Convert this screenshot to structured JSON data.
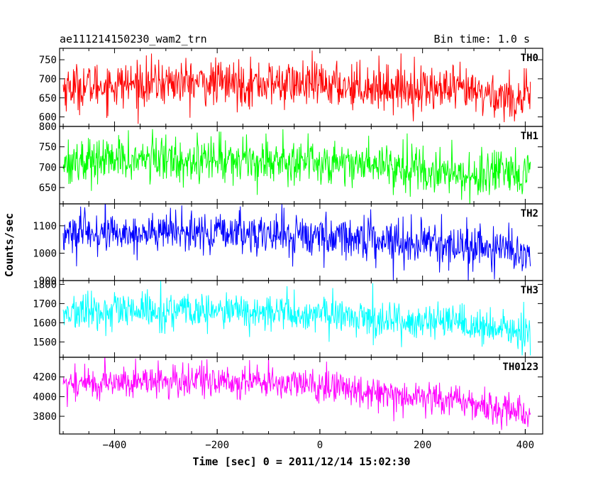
{
  "header": {
    "title": "ae111214150230_wam2_trn",
    "bin_time": "Bin time: 1.0 s"
  },
  "chart_data": {
    "type": "line",
    "title": "ae111214150230_wam2_trn",
    "xlabel": "Time [sec] 0 = 2011/12/14 15:02:30",
    "ylabel": "Counts/sec",
    "xlim": [
      -507,
      434
    ],
    "x_ticks": [
      -400,
      -200,
      0,
      200,
      400
    ],
    "x_range_data": [
      -500,
      410
    ],
    "grid": false,
    "panels": [
      {
        "name": "TH0",
        "color": "#ff0000",
        "ylim": [
          575,
          780
        ],
        "y_ticks": [
          600,
          650,
          700,
          750
        ],
        "trend": [
          [
            -500,
            678
          ],
          [
            -300,
            690
          ],
          [
            -100,
            688
          ],
          [
            100,
            680
          ],
          [
            260,
            670
          ],
          [
            410,
            645
          ]
        ],
        "noise_sd": 30
      },
      {
        "name": "TH1",
        "color": "#00ff00",
        "ylim": [
          610,
          800
        ],
        "y_ticks": [
          650,
          700,
          750,
          800
        ],
        "trend": [
          [
            -500,
            715
          ],
          [
            -300,
            720
          ],
          [
            -100,
            718
          ],
          [
            100,
            708
          ],
          [
            180,
            705
          ],
          [
            200,
            688
          ],
          [
            410,
            675
          ]
        ],
        "noise_sd": 28
      },
      {
        "name": "TH2",
        "color": "#0000ff",
        "ylim": [
          900,
          1180
        ],
        "y_ticks": [
          900,
          1000,
          1100
        ],
        "trend": [
          [
            -500,
            1070
          ],
          [
            -300,
            1075
          ],
          [
            -100,
            1070
          ],
          [
            100,
            1055
          ],
          [
            250,
            1030
          ],
          [
            410,
            1000
          ]
        ],
        "noise_sd": 38
      },
      {
        "name": "TH3",
        "color": "#00ffff",
        "ylim": [
          1420,
          1820
        ],
        "y_ticks": [
          1500,
          1600,
          1700,
          1800
        ],
        "trend": [
          [
            -500,
            1650
          ],
          [
            -300,
            1660
          ],
          [
            -100,
            1655
          ],
          [
            100,
            1625
          ],
          [
            260,
            1590
          ],
          [
            410,
            1545
          ]
        ],
        "noise_sd": 48
      },
      {
        "name": "TH0123",
        "color": "#ff00ff",
        "ylim": [
          3620,
          4400
        ],
        "y_ticks": [
          3800,
          4000,
          4200
        ],
        "trend": [
          [
            -500,
            4130
          ],
          [
            -300,
            4160
          ],
          [
            -100,
            4150
          ],
          [
            100,
            4060
          ],
          [
            260,
            3960
          ],
          [
            410,
            3830
          ]
        ],
        "noise_sd": 85
      }
    ]
  }
}
